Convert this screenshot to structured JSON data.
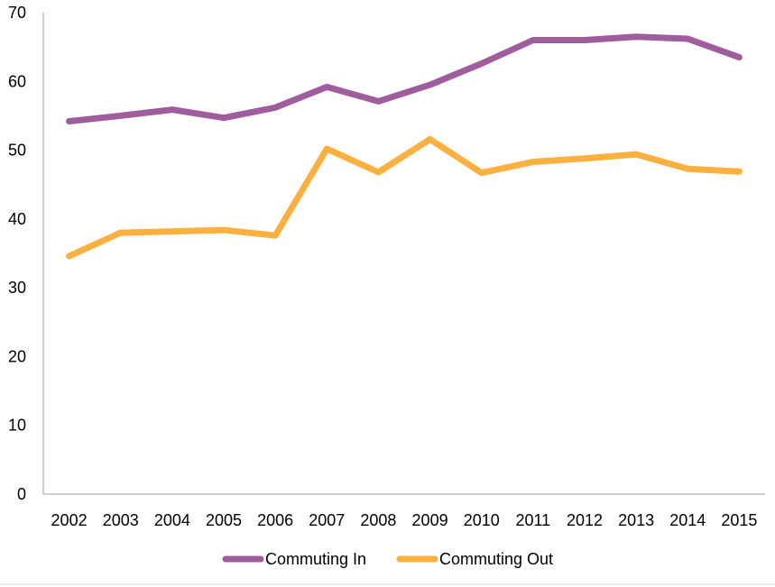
{
  "chart_data": {
    "type": "line",
    "title": "",
    "xlabel": "",
    "ylabel": "",
    "x": [
      "2002",
      "2003",
      "2004",
      "2005",
      "2006",
      "2007",
      "2008",
      "2009",
      "2010",
      "2011",
      "2012",
      "2013",
      "2014",
      "2015"
    ],
    "ylim": [
      0,
      70
    ],
    "yticks": [
      0,
      10,
      20,
      30,
      40,
      50,
      60,
      70
    ],
    "grid": false,
    "legend_position": "bottom",
    "series": [
      {
        "name": "Commuting In",
        "color": "#a05d9e",
        "values": [
          54.2,
          55.0,
          55.9,
          54.7,
          56.2,
          59.2,
          57.1,
          59.5,
          62.6,
          66.0,
          66.0,
          66.5,
          66.2,
          63.5
        ]
      },
      {
        "name": "Commuting Out",
        "color": "#fbb03f",
        "values": [
          34.6,
          38.0,
          38.2,
          38.4,
          37.6,
          50.2,
          46.8,
          51.6,
          46.7,
          48.3,
          48.8,
          49.4,
          47.3,
          46.9
        ]
      }
    ]
  }
}
